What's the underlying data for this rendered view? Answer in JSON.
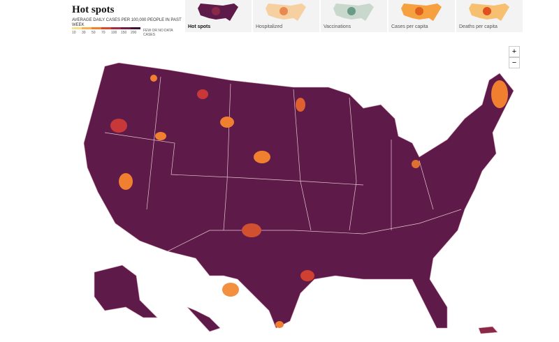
{
  "header": {
    "title": "Hot spots"
  },
  "legend": {
    "label": "AVERAGE DAILY CASES PER 100,000 PEOPLE IN PAST WEEK",
    "ticks": [
      "10",
      "30",
      "50",
      "70",
      "100",
      "150",
      "200"
    ],
    "few_cases": "FEW OR NO CASES",
    "no_data": "DATA"
  },
  "tabs": [
    "Hot spots",
    "Hospitalized",
    "Vaccinations",
    "Cases per capita",
    "Deaths per capita"
  ],
  "zoom": {
    "in": "+",
    "out": "−"
  }
}
